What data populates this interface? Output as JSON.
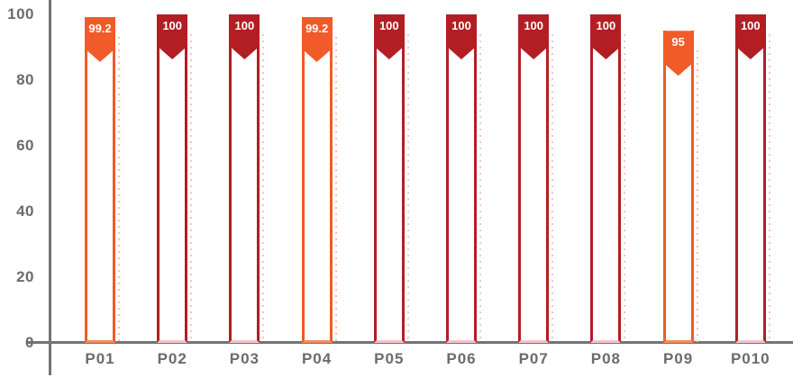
{
  "chart_data": {
    "type": "bar",
    "categories": [
      "P01",
      "P02",
      "P03",
      "P04",
      "P05",
      "P06",
      "P07",
      "P08",
      "P09",
      "P010"
    ],
    "values": [
      99.2,
      100,
      100,
      99.2,
      100,
      100,
      100,
      100,
      95,
      100
    ],
    "value_labels": [
      "99.2",
      "100",
      "100",
      "99.2",
      "100",
      "100",
      "100",
      "100",
      "95",
      "100"
    ],
    "bar_styles": [
      "orange",
      "red",
      "red",
      "orange",
      "red",
      "red",
      "red",
      "red",
      "orange",
      "red"
    ],
    "title": "",
    "xlabel": "",
    "ylabel": "",
    "ylim": [
      0,
      100
    ],
    "yticks": [
      0,
      20,
      40,
      60,
      80,
      100
    ],
    "grid": false,
    "legend": null,
    "colors": {
      "orange": "#F15A29",
      "red": "#B21E24",
      "orange_shadow": "#F9C1A4",
      "red_shadow": "#F2C6C4",
      "orange_bottom": "#F58B5C",
      "red_bottom": "#F0C6C4",
      "axis": "#737373",
      "tick_label": "#6B6B6B"
    }
  }
}
